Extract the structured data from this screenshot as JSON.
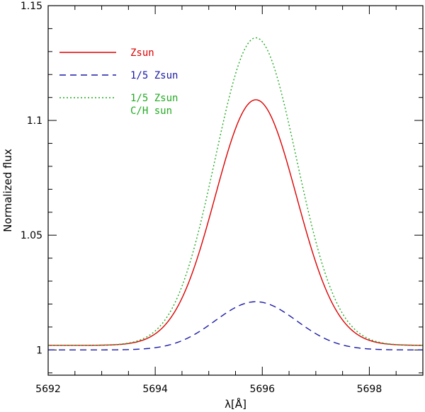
{
  "chart_data": {
    "type": "line",
    "title": "",
    "xlabel": "λ[Å]",
    "ylabel": "Normalized flux",
    "xlim": [
      5692,
      5699
    ],
    "ylim": [
      0.989,
      1.15
    ],
    "x_ticks": [
      5692,
      5694,
      5696,
      5698
    ],
    "x_tick_labels": [
      "5692",
      "5694",
      "5696",
      "5698"
    ],
    "y_ticks": [
      1,
      1.05,
      1.1,
      1.15
    ],
    "y_tick_labels": [
      "1",
      "1.05",
      "1.1",
      "1.15"
    ],
    "legend_position": "top-left",
    "series": [
      {
        "name": "Zsun",
        "label_lines": [
          "Zsun"
        ],
        "color": "#dd0000",
        "style": "solid",
        "baseline": 1.002,
        "center": 5695.88,
        "peak": 1.109,
        "sigma": 0.76
      },
      {
        "name": "1/5 Zsun",
        "label_lines": [
          "1/5 Zsun"
        ],
        "color": "#1a1aa6",
        "style": "dashed",
        "baseline": 1.0,
        "center": 5695.88,
        "peak": 1.021,
        "sigma": 0.76
      },
      {
        "name": "1/5 Zsun C/H sun",
        "label_lines": [
          "1/5 Zsun",
          "C/H sun"
        ],
        "color": "#22aa22",
        "style": "dotted",
        "baseline": 1.002,
        "center": 5695.88,
        "peak": 1.136,
        "sigma": 0.76
      }
    ]
  }
}
